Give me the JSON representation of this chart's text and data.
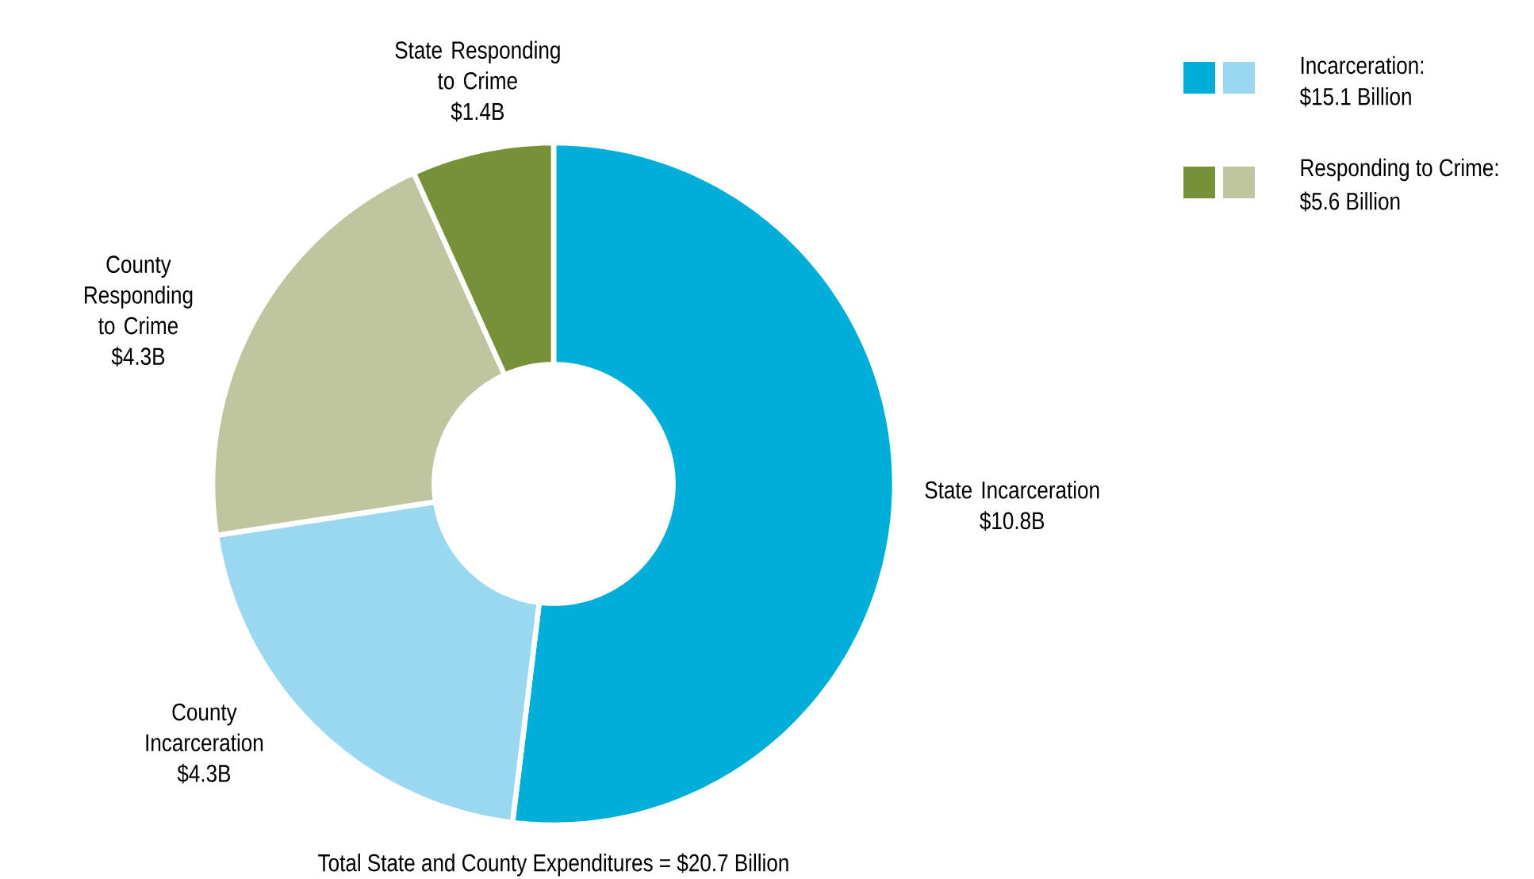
{
  "chart_data": {
    "type": "donut",
    "categories": [
      "State Incarceration",
      "County Incarceration",
      "County Responding to Crime",
      "State Responding to Crime"
    ],
    "values": [
      10.8,
      4.3,
      4.3,
      1.4
    ],
    "value_labels": [
      "$10.8B",
      "$4.3B",
      "$4.3B",
      "$1.4B"
    ],
    "colors": [
      "#00afd9",
      "#9ad8ef",
      "#bfc59f",
      "#76913a"
    ],
    "annotations": [
      "Incarceration:",
      "$15.1 Billion",
      "Responding to Crime:",
      "$5.6 Billion",
      "Total State and County Expenditures = $20.7 Billion"
    ]
  }
}
